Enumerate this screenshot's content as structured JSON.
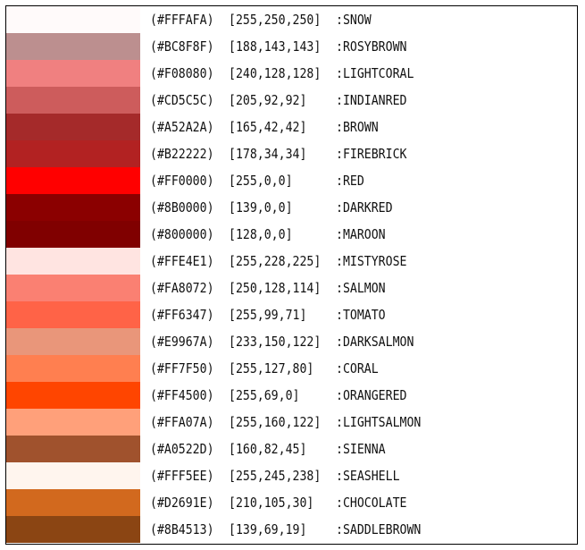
{
  "colors": [
    {
      "hex_label": "(#FFFAFA)",
      "rgb_label": "[255,250,250]",
      "name_label": ":SNOW",
      "swatch": "#FFFAFA"
    },
    {
      "hex_label": "(#BC8F8F)",
      "rgb_label": "[188,143,143]",
      "name_label": ":ROSYBROWN",
      "swatch": "#BC8F8F"
    },
    {
      "hex_label": "(#F08080)",
      "rgb_label": "[240,128,128]",
      "name_label": ":LIGHTCORAL",
      "swatch": "#F08080"
    },
    {
      "hex_label": "(#CD5C5C)",
      "rgb_label": "[205,92,92]",
      "name_label": ":INDIANRED",
      "swatch": "#CD5C5C"
    },
    {
      "hex_label": "(#A52A2A)",
      "rgb_label": "[165,42,42]",
      "name_label": ":BROWN",
      "swatch": "#A52A2A"
    },
    {
      "hex_label": "(#B22222)",
      "rgb_label": "[178,34,34]",
      "name_label": ":FIREBRICK",
      "swatch": "#B22222"
    },
    {
      "hex_label": "(#FF0000)",
      "rgb_label": "[255,0,0]",
      "name_label": ":RED",
      "swatch": "#FF0000"
    },
    {
      "hex_label": "(#8B0000)",
      "rgb_label": "[139,0,0]",
      "name_label": ":DARKRED",
      "swatch": "#8B0000"
    },
    {
      "hex_label": "(#800000)",
      "rgb_label": "[128,0,0]",
      "name_label": ":MAROON",
      "swatch": "#800000"
    },
    {
      "hex_label": "(#FFE4E1)",
      "rgb_label": "[255,228,225]",
      "name_label": ":MISTYROSE",
      "swatch": "#FFE4E1"
    },
    {
      "hex_label": "(#FA8072)",
      "rgb_label": "[250,128,114]",
      "name_label": ":SALMON",
      "swatch": "#FA8072"
    },
    {
      "hex_label": "(#FF6347)",
      "rgb_label": "[255,99,71]",
      "name_label": ":TOMATO",
      "swatch": "#FF6347"
    },
    {
      "hex_label": "(#E9967A)",
      "rgb_label": "[233,150,122]",
      "name_label": ":DARKSALMON",
      "swatch": "#E9967A"
    },
    {
      "hex_label": "(#FF7F50)",
      "rgb_label": "[255,127,80]",
      "name_label": ":CORAL",
      "swatch": "#FF7F50"
    },
    {
      "hex_label": "(#FF4500)",
      "rgb_label": "[255,69,0]",
      "name_label": ":ORANGERED",
      "swatch": "#FF4500"
    },
    {
      "hex_label": "(#FFA07A)",
      "rgb_label": "[255,160,122]",
      "name_label": ":LIGHTSALMON",
      "swatch": "#FFA07A"
    },
    {
      "hex_label": "(#A0522D)",
      "rgb_label": "[160,82,45]",
      "name_label": ":SIENNA",
      "swatch": "#A0522D"
    },
    {
      "hex_label": "(#FFF5EE)",
      "rgb_label": "[255,245,238]",
      "name_label": ":SEASHELL",
      "swatch": "#FFF5EE"
    },
    {
      "hex_label": "(#D2691E)",
      "rgb_label": "[210,105,30]",
      "name_label": ":CHOCOLATE",
      "swatch": "#D2691E"
    },
    {
      "hex_label": "(#8B4513)",
      "rgb_label": "[139,69,19]",
      "name_label": ":SADDLEBROWN",
      "swatch": "#8B4513"
    }
  ]
}
